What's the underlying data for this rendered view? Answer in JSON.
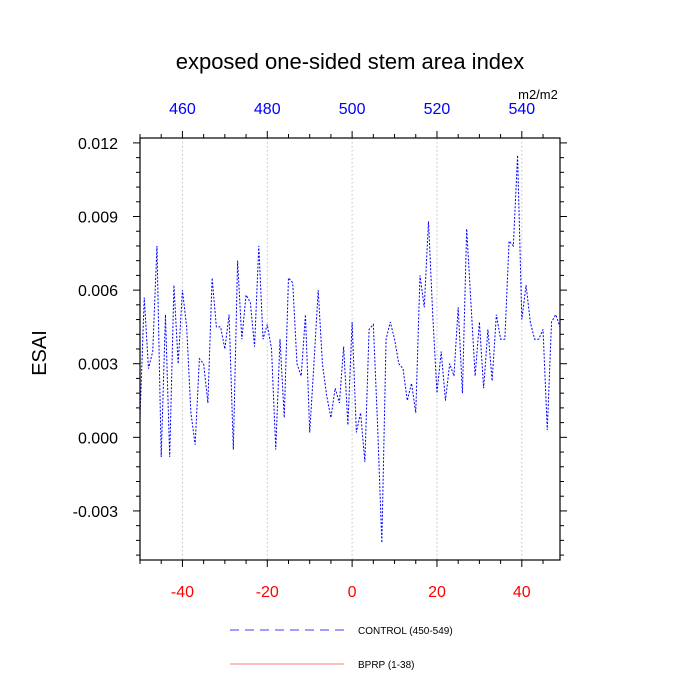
{
  "chart_data": {
    "type": "line",
    "title": "exposed one-sided stem area index",
    "ylabel": "ESAI",
    "units_label": "m2/m2",
    "xlim": [
      -50,
      49
    ],
    "ylim": [
      -0.005,
      0.0122
    ],
    "x_ticks": [
      "-40",
      "-20",
      "0",
      "20",
      "40"
    ],
    "x_tick_values": [
      -40,
      -20,
      0,
      20,
      40
    ],
    "top_ticks": [
      "460",
      "480",
      "500",
      "520",
      "540"
    ],
    "top_tick_values": [
      -40,
      -20,
      0,
      20,
      40
    ],
    "y_ticks": [
      "0.012",
      "0.009",
      "0.006",
      "0.003",
      "0.000",
      "-0.003"
    ],
    "y_tick_values": [
      0.012,
      0.009,
      0.006,
      0.003,
      0.0,
      -0.003
    ],
    "grid": "vertical dotted at major x ticks",
    "bottom_tick_color": "#ff0000",
    "top_tick_color": "#0000ff",
    "legend_position": "bottom",
    "series": [
      {
        "name": "CONTROL (450-549)",
        "color": "#0000ff",
        "style": "dashed",
        "x": [
          -50,
          -49,
          -48,
          -47,
          -46,
          -45,
          -44,
          -43,
          -42,
          -41,
          -40,
          -39,
          -38,
          -37,
          -36,
          -35,
          -34,
          -33,
          -32,
          -31,
          -30,
          -29,
          -28,
          -27,
          -26,
          -25,
          -24,
          -23,
          -22,
          -21,
          -20,
          -19,
          -18,
          -17,
          -16,
          -15,
          -14,
          -13,
          -12,
          -11,
          -10,
          -9,
          -8,
          -7,
          -6,
          -5,
          -4,
          -3,
          -2,
          -1,
          0,
          1,
          2,
          3,
          4,
          5,
          6,
          7,
          8,
          9,
          10,
          11,
          12,
          13,
          14,
          15,
          16,
          17,
          18,
          19,
          20,
          21,
          22,
          23,
          24,
          25,
          26,
          27,
          28,
          29,
          30,
          31,
          32,
          33,
          34,
          35,
          36,
          37,
          38,
          39,
          40,
          41,
          42,
          43,
          44,
          45,
          46,
          47,
          48,
          49
        ],
        "y": [
          0.0008,
          0.0057,
          0.0028,
          0.0035,
          0.0078,
          -0.0008,
          0.005,
          -0.0008,
          0.0062,
          0.003,
          0.006,
          0.0045,
          0.001,
          -0.0003,
          0.0032,
          0.003,
          0.0014,
          0.0065,
          0.0045,
          0.0045,
          0.0036,
          0.005,
          -0.0005,
          0.0072,
          0.004,
          0.0058,
          0.0055,
          0.0037,
          0.0078,
          0.004,
          0.0046,
          0.0036,
          -0.0005,
          0.004,
          0.0008,
          0.0065,
          0.0063,
          0.003,
          0.0025,
          0.005,
          0.0002,
          0.003,
          0.006,
          0.003,
          0.0017,
          0.0008,
          0.002,
          0.0014,
          0.0037,
          0.0005,
          0.0047,
          0.0002,
          0.001,
          -0.001,
          0.0044,
          0.0046,
          0.0005,
          -0.0043,
          0.004,
          0.0047,
          0.004,
          0.003,
          0.0028,
          0.0015,
          0.0022,
          0.001,
          0.0066,
          0.0053,
          0.0088,
          0.005,
          0.0018,
          0.0035,
          0.0015,
          0.003,
          0.0025,
          0.0053,
          0.0018,
          0.0085,
          0.0055,
          0.0025,
          0.0047,
          0.002,
          0.0044,
          0.0023,
          0.005,
          0.004,
          0.004,
          0.008,
          0.0078,
          0.0115,
          0.0048,
          0.0062,
          0.0047,
          0.004,
          0.004,
          0.0044,
          0.0003,
          0.0047,
          0.005,
          0.0045
        ]
      },
      {
        "name": "BPRP (1-38)",
        "color": "#ff0000",
        "style": "solid",
        "x": [],
        "y": []
      }
    ]
  }
}
